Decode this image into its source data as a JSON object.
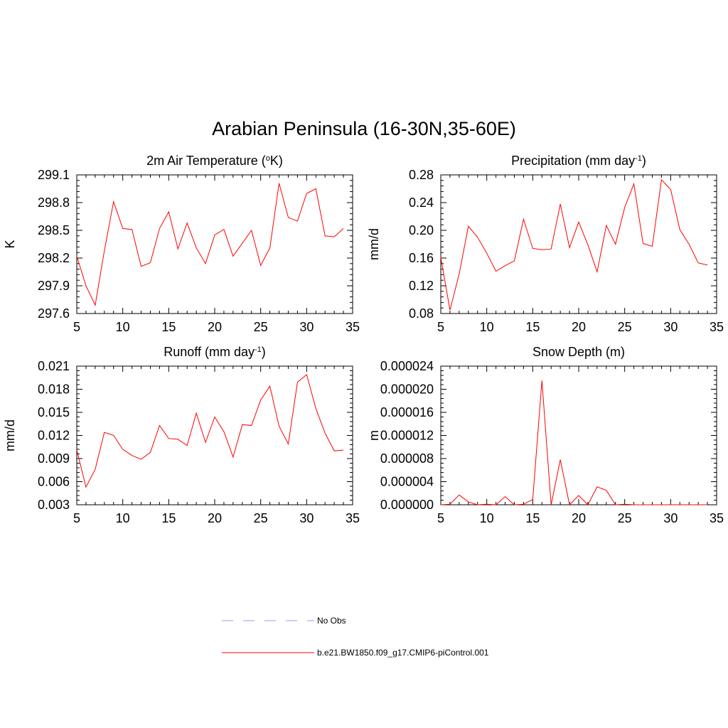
{
  "main_title": "Arabian Peninsula (16-30N,35-60E)",
  "legend": {
    "obs_label": "No Obs",
    "obs_color": "#9999ff",
    "model_label": "b.e21.BW1850.f09_g17.CMIP6-piControl.001",
    "model_color": "#ff0000"
  },
  "chart_data": [
    {
      "type": "line",
      "title": "2m Air Temperature (",
      "title_sup": "o",
      "title_end": "K)",
      "ylabel": "K",
      "xlabel": "",
      "xlim": [
        5,
        35
      ],
      "xticks": [
        "5",
        "10",
        "15",
        "20",
        "25",
        "30",
        "35"
      ],
      "ylim": [
        297.6,
        299.1
      ],
      "yticks": [
        "297.6",
        "297.9",
        "298.2",
        "298.5",
        "298.8",
        "299.1"
      ],
      "x": [
        5,
        6,
        7,
        8,
        9,
        10,
        11,
        12,
        13,
        14,
        15,
        16,
        17,
        18,
        19,
        20,
        21,
        22,
        23,
        24,
        25,
        26,
        27,
        28,
        29,
        30,
        31,
        32,
        33,
        34
      ],
      "series": [
        {
          "color": "#ff0000",
          "values": [
            298.22,
            297.9,
            297.69,
            298.28,
            298.81,
            298.52,
            298.51,
            298.11,
            298.15,
            298.52,
            298.7,
            298.3,
            298.58,
            298.31,
            298.14,
            298.45,
            298.51,
            298.22,
            298.36,
            298.5,
            298.12,
            298.31,
            299.01,
            298.64,
            298.6,
            298.9,
            298.95,
            298.44,
            298.43,
            298.52
          ]
        }
      ]
    },
    {
      "type": "line",
      "title": "Precipitation (mm day",
      "title_sup": "-1",
      "title_end": ")",
      "ylabel": "mm/d",
      "xlabel": "",
      "xlim": [
        5,
        35
      ],
      "xticks": [
        "5",
        "10",
        "15",
        "20",
        "25",
        "30",
        "35"
      ],
      "ylim": [
        0.08,
        0.28
      ],
      "yticks": [
        "0.08",
        "0.12",
        "0.16",
        "0.20",
        "0.24",
        "0.28"
      ],
      "x": [
        5,
        6,
        7,
        8,
        9,
        10,
        11,
        12,
        13,
        14,
        15,
        16,
        17,
        18,
        19,
        20,
        21,
        22,
        23,
        24,
        25,
        26,
        27,
        28,
        29,
        30,
        31,
        32,
        33,
        34
      ],
      "series": [
        {
          "color": "#ff0000",
          "values": [
            0.161,
            0.085,
            0.137,
            0.206,
            0.19,
            0.167,
            0.141,
            0.149,
            0.156,
            0.216,
            0.174,
            0.172,
            0.173,
            0.238,
            0.175,
            0.212,
            0.179,
            0.14,
            0.207,
            0.18,
            0.233,
            0.267,
            0.181,
            0.177,
            0.273,
            0.259,
            0.201,
            0.18,
            0.153,
            0.15
          ]
        }
      ]
    },
    {
      "type": "line",
      "title": "Runoff (mm day",
      "title_sup": "-1",
      "title_end": ")",
      "ylabel": "mm/d",
      "xlabel": "",
      "xlim": [
        5,
        35
      ],
      "xticks": [
        "5",
        "10",
        "15",
        "20",
        "25",
        "30",
        "35"
      ],
      "ylim": [
        0.003,
        0.021
      ],
      "yticks": [
        "0.003",
        "0.006",
        "0.009",
        "0.012",
        "0.015",
        "0.018",
        "0.021"
      ],
      "x": [
        5,
        6,
        7,
        8,
        9,
        10,
        11,
        12,
        13,
        14,
        15,
        16,
        17,
        18,
        19,
        20,
        21,
        22,
        23,
        24,
        25,
        26,
        27,
        28,
        29,
        30,
        31,
        32,
        33,
        34
      ],
      "series": [
        {
          "color": "#ff0000",
          "values": [
            0.0101,
            0.0053,
            0.0076,
            0.0124,
            0.012,
            0.0102,
            0.0094,
            0.0089,
            0.0098,
            0.0133,
            0.0116,
            0.0115,
            0.0107,
            0.0149,
            0.0111,
            0.0144,
            0.0125,
            0.0092,
            0.0134,
            0.0133,
            0.0166,
            0.0184,
            0.0132,
            0.0109,
            0.0189,
            0.0199,
            0.0155,
            0.0123,
            0.01,
            0.0101
          ]
        }
      ]
    },
    {
      "type": "line",
      "title": "Snow Depth (m)",
      "title_sup": "",
      "title_end": "",
      "ylabel": "m",
      "xlabel": "",
      "xlim": [
        5,
        35
      ],
      "xticks": [
        "5",
        "10",
        "15",
        "20",
        "25",
        "30",
        "35"
      ],
      "ylim": [
        0.0,
        2.4e-05
      ],
      "yticks": [
        "0.000000",
        "0.000004",
        "0.000008",
        "0.000012",
        "0.000016",
        "0.000020",
        "0.000024"
      ],
      "x": [
        5,
        6,
        7,
        8,
        9,
        10,
        11,
        12,
        13,
        14,
        15,
        16,
        17,
        18,
        19,
        20,
        21,
        22,
        23,
        24,
        25,
        26,
        27,
        28,
        29,
        30,
        31,
        32,
        33,
        34
      ],
      "series": [
        {
          "color": "#ff0000",
          "values": [
            0.0,
            1e-07,
            1.7e-06,
            5e-07,
            0.0,
            1e-07,
            0.0,
            1.4e-06,
            0.0,
            1e-07,
            9e-07,
            2.15e-05,
            0.0,
            7.8e-06,
            0.0,
            1.6e-06,
            0.0,
            3.1e-06,
            2.5e-06,
            0.0,
            1e-07,
            0.0,
            0.0,
            0.0,
            0.0,
            0.0,
            0.0,
            0.0,
            0.0,
            0.0
          ]
        }
      ]
    }
  ]
}
